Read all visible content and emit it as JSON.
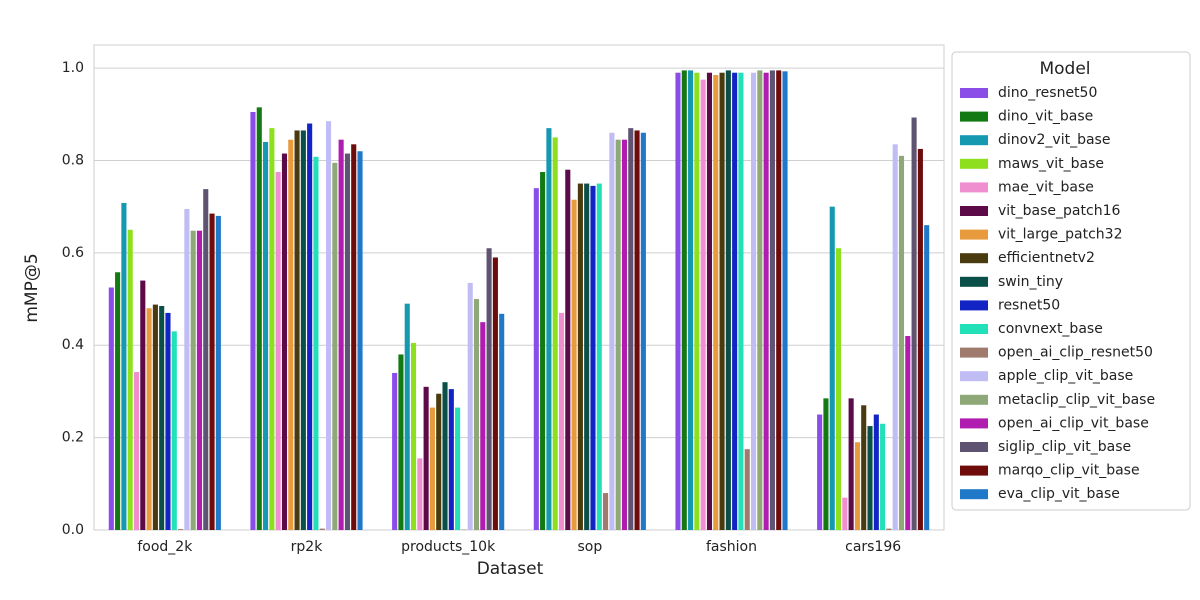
{
  "chart_data": {
    "type": "bar",
    "x_label": "Dataset",
    "y_label": "mMP@5",
    "legend_title": "Model",
    "legend": "right-outside",
    "grid": true,
    "categories": [
      "food_2k",
      "rp2k",
      "products_10k",
      "sop",
      "fashion",
      "cars196"
    ],
    "ylim": [
      0,
      1.05
    ],
    "yticks": [
      {
        "value": 0,
        "label": "0.0"
      },
      0.2,
      0.4,
      0.6,
      0.8,
      {
        "value": 1,
        "label": "1.0"
      }
    ],
    "series": [
      {
        "name": "dino_resnet50",
        "color": "#8a4de8",
        "values": [
          0.525,
          0.905,
          0.34,
          0.74,
          0.99,
          0.25
        ]
      },
      {
        "name": "dino_vit_base",
        "color": "#137a13",
        "values": [
          0.558,
          0.915,
          0.38,
          0.775,
          0.995,
          0.285
        ]
      },
      {
        "name": "dinov2_vit_base",
        "color": "#1499b0",
        "values": [
          0.708,
          0.84,
          0.49,
          0.87,
          0.995,
          0.7
        ]
      },
      {
        "name": "maws_vit_base",
        "color": "#8ee01e",
        "values": [
          0.65,
          0.87,
          0.405,
          0.85,
          0.99,
          0.61
        ]
      },
      {
        "name": "mae_vit_base",
        "color": "#f08fd0",
        "values": [
          0.342,
          0.775,
          0.155,
          0.47,
          0.975,
          0.07
        ]
      },
      {
        "name": "vit_base_patch16",
        "color": "#5c0a48",
        "values": [
          0.54,
          0.815,
          0.31,
          0.78,
          0.99,
          0.285
        ]
      },
      {
        "name": "vit_large_patch32",
        "color": "#e89b3c",
        "values": [
          0.48,
          0.845,
          0.265,
          0.715,
          0.985,
          0.19
        ]
      },
      {
        "name": "efficientnetv2",
        "color": "#4a3a10",
        "values": [
          0.488,
          0.865,
          0.295,
          0.75,
          0.99,
          0.27
        ]
      },
      {
        "name": "swin_tiny",
        "color": "#0b5048",
        "values": [
          0.485,
          0.865,
          0.32,
          0.75,
          0.995,
          0.225
        ]
      },
      {
        "name": "resnet50",
        "color": "#1224c4",
        "values": [
          0.47,
          0.88,
          0.305,
          0.745,
          0.99,
          0.25
        ]
      },
      {
        "name": "convnext_base",
        "color": "#22e0b8",
        "values": [
          0.43,
          0.808,
          0.265,
          0.75,
          0.99,
          0.23
        ]
      },
      {
        "name": "open_ai_clip_resnet50",
        "color": "#a07a6c",
        "values": [
          0.002,
          0.003,
          0.001,
          0.08,
          0.175,
          0.003
        ]
      },
      {
        "name": "apple_clip_vit_base",
        "color": "#c0bcf4",
        "values": [
          0.695,
          0.885,
          0.535,
          0.86,
          0.99,
          0.835
        ]
      },
      {
        "name": "metaclip_clip_vit_base",
        "color": "#8fa878",
        "values": [
          0.648,
          0.795,
          0.5,
          0.845,
          0.995,
          0.81
        ]
      },
      {
        "name": "open_ai_clip_vit_base",
        "color": "#b01cb0",
        "values": [
          0.648,
          0.845,
          0.45,
          0.845,
          0.99,
          0.42
        ]
      },
      {
        "name": "siglip_clip_vit_base",
        "color": "#5e5472",
        "values": [
          0.738,
          0.815,
          0.61,
          0.87,
          0.995,
          0.893
        ]
      },
      {
        "name": "marqo_clip_vit_base",
        "color": "#6e0c0c",
        "values": [
          0.685,
          0.835,
          0.59,
          0.865,
          0.995,
          0.825
        ]
      },
      {
        "name": "eva_clip_vit_base",
        "color": "#1f78c8",
        "values": [
          0.68,
          0.82,
          0.468,
          0.86,
          0.993,
          0.66
        ]
      }
    ]
  }
}
